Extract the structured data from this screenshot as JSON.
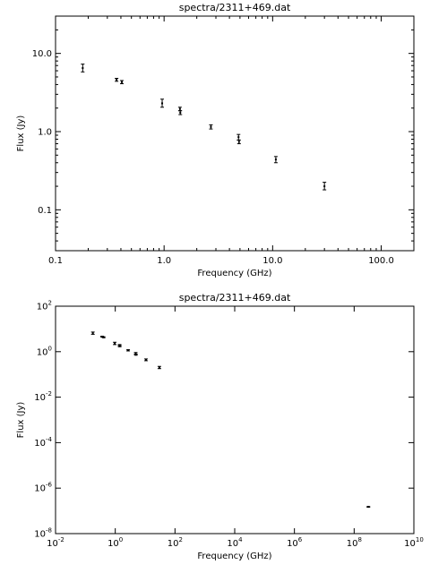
{
  "chart_data": [
    {
      "type": "scatter",
      "title": "spectra/2311+469.dat",
      "xlabel": "Frequency (GHz)",
      "ylabel": "Flux (Jy)",
      "xscale": "log",
      "yscale": "log",
      "xlim": [
        0.1,
        200
      ],
      "ylim": [
        0.03,
        30
      ],
      "xticks": [
        {
          "value": 0.1,
          "label": "0.1"
        },
        {
          "value": 1,
          "label": "1.0"
        },
        {
          "value": 10,
          "label": "10.0"
        },
        {
          "value": 100,
          "label": "100.0"
        }
      ],
      "yticks": [
        {
          "value": 0.1,
          "label": "0.1"
        },
        {
          "value": 1,
          "label": "1.0"
        },
        {
          "value": 10,
          "label": "10.0"
        }
      ],
      "points": [
        {
          "x": 0.178,
          "y": 6.5,
          "yerr_lo": 5.8,
          "yerr_hi": 7.3
        },
        {
          "x": 0.365,
          "y": 4.6,
          "yerr_lo": 4.4,
          "yerr_hi": 4.8
        },
        {
          "x": 0.408,
          "y": 4.3,
          "yerr_lo": 4.1,
          "yerr_hi": 4.5
        },
        {
          "x": 0.96,
          "y": 2.3,
          "yerr_lo": 2.05,
          "yerr_hi": 2.6
        },
        {
          "x": 1.4,
          "y": 1.95,
          "yerr_lo": 1.85,
          "yerr_hi": 2.05
        },
        {
          "x": 1.41,
          "y": 1.75,
          "yerr_lo": 1.65,
          "yerr_hi": 1.85
        },
        {
          "x": 2.7,
          "y": 1.15,
          "yerr_lo": 1.08,
          "yerr_hi": 1.22
        },
        {
          "x": 4.85,
          "y": 0.85,
          "yerr_lo": 0.78,
          "yerr_hi": 0.92
        },
        {
          "x": 4.9,
          "y": 0.74,
          "yerr_lo": 0.7,
          "yerr_hi": 0.78
        },
        {
          "x": 10.7,
          "y": 0.44,
          "yerr_lo": 0.4,
          "yerr_hi": 0.48
        },
        {
          "x": 30,
          "y": 0.2,
          "yerr_lo": 0.18,
          "yerr_hi": 0.225
        }
      ]
    },
    {
      "type": "scatter",
      "title": "spectra/2311+469.dat",
      "xlabel": "Frequency (GHz)",
      "ylabel": "Flux (Jy)",
      "xscale": "log",
      "yscale": "log",
      "xlim": [
        0.01,
        10000000000
      ],
      "ylim": [
        1e-08,
        100
      ],
      "xticks": [
        {
          "value": 0.01,
          "base": "10",
          "exp": "-2"
        },
        {
          "value": 1,
          "base": "10",
          "exp": "0"
        },
        {
          "value": 100,
          "base": "10",
          "exp": "2"
        },
        {
          "value": 10000,
          "base": "10",
          "exp": "4"
        },
        {
          "value": 1000000,
          "base": "10",
          "exp": "6"
        },
        {
          "value": 100000000,
          "base": "10",
          "exp": "8"
        },
        {
          "value": 10000000000,
          "base": "10",
          "exp": "10"
        }
      ],
      "yticks": [
        {
          "value": 1e-08,
          "base": "10",
          "exp": "-8"
        },
        {
          "value": 1e-06,
          "base": "10",
          "exp": "-6"
        },
        {
          "value": 0.0001,
          "base": "10",
          "exp": "-4"
        },
        {
          "value": 0.01,
          "base": "10",
          "exp": "-2"
        },
        {
          "value": 1,
          "base": "10",
          "exp": "0"
        },
        {
          "value": 100,
          "base": "10",
          "exp": "2"
        }
      ],
      "points": [
        {
          "x": 0.178,
          "y": 6.5,
          "yerr_lo": 5.8,
          "yerr_hi": 7.3
        },
        {
          "x": 0.365,
          "y": 4.6,
          "yerr_lo": 4.4,
          "yerr_hi": 4.8
        },
        {
          "x": 0.408,
          "y": 4.3,
          "yerr_lo": 4.1,
          "yerr_hi": 4.5
        },
        {
          "x": 0.96,
          "y": 2.3,
          "yerr_lo": 2.05,
          "yerr_hi": 2.6
        },
        {
          "x": 1.4,
          "y": 1.95,
          "yerr_lo": 1.85,
          "yerr_hi": 2.05
        },
        {
          "x": 1.41,
          "y": 1.75,
          "yerr_lo": 1.65,
          "yerr_hi": 1.85
        },
        {
          "x": 2.7,
          "y": 1.15,
          "yerr_lo": 1.08,
          "yerr_hi": 1.22
        },
        {
          "x": 4.85,
          "y": 0.85,
          "yerr_lo": 0.78,
          "yerr_hi": 0.92
        },
        {
          "x": 4.9,
          "y": 0.74,
          "yerr_lo": 0.7,
          "yerr_hi": 0.78
        },
        {
          "x": 10.7,
          "y": 0.44,
          "yerr_lo": 0.4,
          "yerr_hi": 0.48
        },
        {
          "x": 30,
          "y": 0.2,
          "yerr_lo": 0.18,
          "yerr_hi": 0.225
        },
        {
          "x": 300000000,
          "y": 1.5e-07,
          "yerr_lo": 1.45e-07,
          "yerr_hi": 1.55e-07
        }
      ]
    }
  ]
}
